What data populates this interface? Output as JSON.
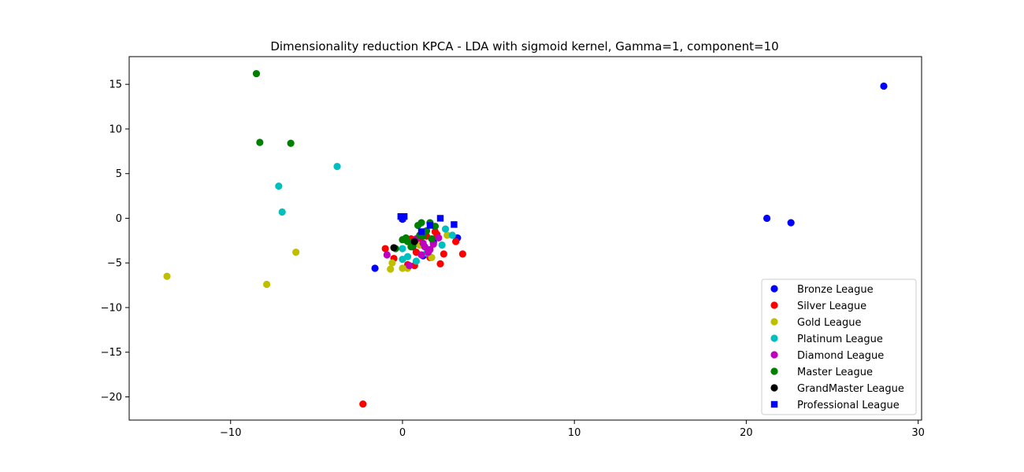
{
  "chart_data": {
    "type": "scatter",
    "title": "Dimensionality reduction KPCA - LDA with sigmoid kernel, Gamma=1, component=10",
    "xlabel": "",
    "ylabel": "",
    "xlim": [
      -15.9,
      30.2
    ],
    "ylim": [
      -22.6,
      18.1
    ],
    "xticks": [
      -10,
      0,
      10,
      20,
      30
    ],
    "yticks": [
      15,
      10,
      5,
      0,
      -5,
      -10,
      -15,
      -20
    ],
    "xtick_labels": [
      "−10",
      "0",
      "10",
      "20",
      "30"
    ],
    "ytick_labels": [
      "15",
      "10",
      "5",
      "0",
      "−5",
      "−10",
      "−15",
      "−20"
    ],
    "grid": false,
    "legend_position": "lower right",
    "series": [
      {
        "name": "Bronze League",
        "color": "#0000ff",
        "marker": "circle",
        "points": [
          [
            28.0,
            14.8
          ],
          [
            21.2,
            0.0
          ],
          [
            22.6,
            -0.5
          ],
          [
            -1.6,
            -5.6
          ],
          [
            0.0,
            0.1
          ],
          [
            0.0,
            -0.1
          ],
          [
            1.8,
            -2.7
          ],
          [
            3.2,
            -2.2
          ],
          [
            0.6,
            -3.2
          ],
          [
            1.2,
            -4.2
          ]
        ]
      },
      {
        "name": "Silver League",
        "color": "#ff0000",
        "marker": "circle",
        "points": [
          [
            -2.3,
            -20.8
          ],
          [
            -1.0,
            -3.4
          ],
          [
            -0.5,
            -4.5
          ],
          [
            0.3,
            -5.2
          ],
          [
            0.7,
            -5.3
          ],
          [
            0.5,
            -2.3
          ],
          [
            1.0,
            -2.6
          ],
          [
            1.4,
            -2.0
          ],
          [
            2.0,
            -1.8
          ],
          [
            2.2,
            -5.1
          ],
          [
            2.4,
            -4.0
          ],
          [
            3.1,
            -2.6
          ],
          [
            3.5,
            -4.0
          ],
          [
            1.6,
            -4.4
          ],
          [
            0.8,
            -3.8
          ],
          [
            1.9,
            -1.5
          ]
        ]
      },
      {
        "name": "Gold League",
        "color": "#bfbf00",
        "marker": "circle",
        "points": [
          [
            -13.7,
            -6.5
          ],
          [
            -7.9,
            -7.4
          ],
          [
            -6.2,
            -3.8
          ],
          [
            -0.7,
            -5.7
          ],
          [
            -0.6,
            -5.0
          ],
          [
            0.0,
            -5.6
          ],
          [
            0.3,
            -5.6
          ],
          [
            1.7,
            -4.4
          ],
          [
            2.6,
            -1.9
          ],
          [
            1.0,
            -3.0
          ],
          [
            0.3,
            -2.6
          ]
        ]
      },
      {
        "name": "Platinum League",
        "color": "#00bfbf",
        "marker": "circle",
        "points": [
          [
            -3.8,
            5.8
          ],
          [
            -7.2,
            3.6
          ],
          [
            -7.0,
            0.7
          ],
          [
            0.0,
            -4.6
          ],
          [
            0.3,
            -4.3
          ],
          [
            0.8,
            -4.8
          ],
          [
            1.4,
            -3.9
          ],
          [
            2.3,
            -3.0
          ],
          [
            2.5,
            -1.2
          ],
          [
            2.9,
            -1.9
          ],
          [
            0.0,
            -3.4
          ],
          [
            0.6,
            -2.9
          ]
        ]
      },
      {
        "name": "Diamond League",
        "color": "#bf00bf",
        "marker": "circle",
        "points": [
          [
            -0.9,
            -4.1
          ],
          [
            0.4,
            -5.3
          ],
          [
            1.1,
            -4.1
          ],
          [
            1.3,
            -3.2
          ],
          [
            1.6,
            -3.5
          ],
          [
            1.8,
            -2.9
          ],
          [
            0.8,
            -2.3
          ],
          [
            1.2,
            -2.8
          ],
          [
            1.5,
            -3.8
          ],
          [
            2.1,
            -2.2
          ]
        ]
      },
      {
        "name": "Master League",
        "color": "#008000",
        "marker": "circle",
        "points": [
          [
            -8.5,
            16.2
          ],
          [
            -8.3,
            8.5
          ],
          [
            -6.5,
            8.4
          ],
          [
            -0.4,
            -3.4
          ],
          [
            0.0,
            -2.4
          ],
          [
            0.3,
            -2.6
          ],
          [
            0.6,
            -3.1
          ],
          [
            0.9,
            -0.8
          ],
          [
            1.1,
            -0.5
          ],
          [
            1.2,
            -2.0
          ],
          [
            1.4,
            -1.4
          ],
          [
            1.6,
            -0.5
          ],
          [
            1.7,
            -2.3
          ],
          [
            0.5,
            -3.2
          ],
          [
            1.0,
            -1.9
          ],
          [
            1.9,
            -0.9
          ],
          [
            0.2,
            -2.2
          ]
        ]
      },
      {
        "name": "GrandMaster League",
        "color": "#000000",
        "marker": "circle",
        "points": [
          [
            -0.5,
            -3.3
          ],
          [
            0.7,
            -2.6
          ]
        ]
      },
      {
        "name": "Professional League",
        "color": "#0000ff",
        "marker": "square",
        "points": [
          [
            -0.1,
            0.2
          ],
          [
            0.1,
            0.2
          ],
          [
            0.0,
            0.0
          ],
          [
            1.1,
            -1.5
          ],
          [
            1.6,
            -0.8
          ],
          [
            2.2,
            0.0
          ],
          [
            3.0,
            -0.7
          ]
        ]
      }
    ]
  }
}
